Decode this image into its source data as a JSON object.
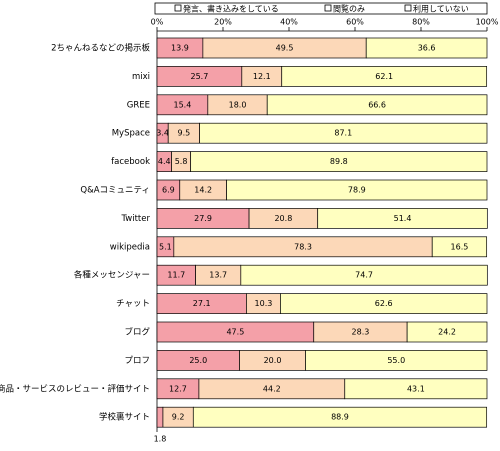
{
  "chart_data": {
    "type": "stacked-bar-horizontal",
    "categories": [
      "2ちゃんねるなどの掲示板",
      "mixi",
      "GREE",
      "MySpace",
      "facebook",
      "Q&Aコミュニティ",
      "Twitter",
      "wikipedia",
      "各種メッセンジャー",
      "チャット",
      "ブログ",
      "プロフ",
      "商品・サービスのレビュー・評価サイト",
      "学校裏サイト"
    ],
    "series": [
      {
        "name": "発言、書き込みをしている",
        "color": "#f4a0a8",
        "values": [
          13.9,
          25.7,
          15.4,
          3.4,
          4.4,
          6.9,
          27.9,
          5.1,
          11.7,
          27.1,
          47.5,
          25.0,
          12.7,
          1.8
        ],
        "value_labels": [
          "13.9",
          "25.7",
          "15.4",
          "3.4",
          "4.4",
          "6.9",
          "27.9",
          "5.1",
          "11.7",
          "27.1",
          "47.5",
          "25.0",
          "12.7",
          "1.8"
        ]
      },
      {
        "name": "閲覧のみ",
        "color": "#fcd8b8",
        "values": [
          49.5,
          12.1,
          18.0,
          9.5,
          5.8,
          14.2,
          20.8,
          78.3,
          13.7,
          10.3,
          28.3,
          20.0,
          44.2,
          9.2
        ],
        "value_labels": [
          "49.5",
          "12.1",
          "18.0",
          "9.5",
          "5.8",
          "14.2",
          "20.8",
          "78.3",
          "13.7",
          "10.3",
          "28.3",
          "20.0",
          "44.2",
          "9.2"
        ]
      },
      {
        "name": "利用していない",
        "color": "#ffffc0",
        "values": [
          36.6,
          62.1,
          66.6,
          87.1,
          89.8,
          78.9,
          51.4,
          16.5,
          74.7,
          62.6,
          24.2,
          55.0,
          43.1,
          88.9
        ],
        "value_labels": [
          "36.6",
          "62.1",
          "66.6",
          "87.1",
          "89.8",
          "78.9",
          "51.4",
          "16.5",
          "74.7",
          "62.6",
          "24.2",
          "55.0",
          "43.1",
          "88.9"
        ]
      }
    ],
    "xlim": [
      0,
      100
    ],
    "xticks": [
      {
        "value": 0,
        "label": "0%"
      },
      {
        "value": 20,
        "label": "20%"
      },
      {
        "value": 40,
        "label": "40%"
      },
      {
        "value": 60,
        "label": "60%"
      },
      {
        "value": 80,
        "label": "80%"
      },
      {
        "value": 100,
        "label": "100%"
      }
    ]
  }
}
